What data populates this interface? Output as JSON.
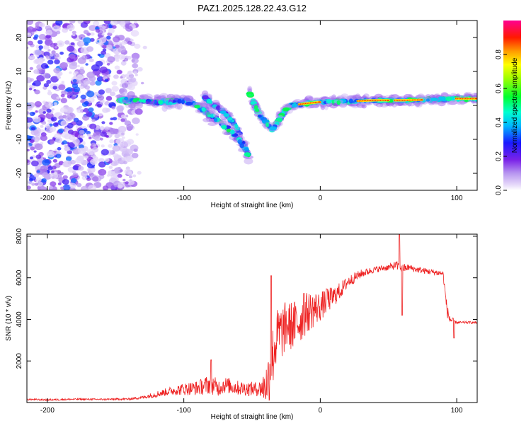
{
  "figure": {
    "title": "PAZ1.2025.128.22.43.G12"
  },
  "chart_data": [
    {
      "type": "heatmap",
      "xlabel": "Height of straight line (km)",
      "ylabel": "Frequency (Hz)",
      "xlim": [
        -215,
        115
      ],
      "ylim": [
        -25,
        25
      ],
      "xticks": [
        -200,
        -100,
        0,
        100
      ],
      "yticks": [
        -20,
        -10,
        0,
        10,
        20
      ],
      "grid": false,
      "colorbar": {
        "label": "Normalized spectral amplitude",
        "ticks": [
          0.0,
          0.2,
          0.4,
          0.6,
          0.8
        ],
        "range": [
          0,
          1
        ],
        "colormap": "rainbow (white, lavender, violet, blue, cyan, green, yellow, orange, red, magenta)"
      },
      "features": {
        "noise_region_x": [
          -215,
          -135
        ],
        "primary_ridge": {
          "x": [
            -148,
            -130,
            -115,
            -100,
            -90,
            -80,
            -70,
            -62,
            -56,
            -52
          ],
          "y": [
            1.5,
            1.5,
            1.0,
            1.5,
            0,
            -3,
            -6,
            -9,
            -12,
            -15
          ]
        },
        "secondary_branch": {
          "x": [
            -85,
            -78,
            -70,
            -62,
            -58
          ],
          "y": [
            2.5,
            0,
            -2,
            -6,
            -10
          ]
        },
        "tail_ridge": {
          "x": [
            -52,
            -48,
            -44,
            -40,
            -35,
            -30,
            -25,
            -20,
            -12,
            0,
            20,
            40,
            60,
            80,
            100,
            115
          ],
          "y": [
            4,
            0,
            -3,
            -5,
            -7,
            -4,
            -1,
            0,
            0.5,
            1,
            1.2,
            1.5,
            1.5,
            1.7,
            2,
            2
          ]
        },
        "high_amplitude_segments_x": [
          [
            -15,
            0
          ],
          [
            28,
            50
          ],
          [
            55,
            75
          ],
          [
            100,
            115
          ]
        ]
      }
    },
    {
      "type": "line",
      "xlabel": "Height of straight line (km)",
      "ylabel": "SNR (10 * v/v)",
      "xlim": [
        -215,
        115
      ],
      "ylim": [
        0,
        8100
      ],
      "xticks": [
        -200,
        -100,
        0,
        100
      ],
      "yticks": [
        2000,
        4000,
        6000,
        8000
      ],
      "grid": false,
      "series": [
        {
          "color": "#ee2222",
          "x": [
            -215,
            -200,
            -180,
            -160,
            -140,
            -130,
            -120,
            -110,
            -100,
            -90,
            -80,
            -75,
            -70,
            -60,
            -50,
            -45,
            -40,
            -38,
            -36,
            -34,
            -32,
            -30,
            -28,
            -25,
            -20,
            -15,
            -10,
            -5,
            0,
            5,
            10,
            15,
            20,
            25,
            30,
            40,
            50,
            55,
            58,
            60,
            62,
            65,
            70,
            80,
            90,
            93,
            95,
            98,
            100,
            105,
            110,
            115
          ],
          "y": [
            150,
            130,
            160,
            150,
            170,
            250,
            400,
            550,
            650,
            700,
            900,
            700,
            850,
            700,
            650,
            650,
            800,
            1200,
            1800,
            2500,
            3100,
            3300,
            3400,
            3700,
            3700,
            3900,
            4300,
            4500,
            4600,
            4900,
            5100,
            5400,
            5800,
            6000,
            6200,
            6400,
            6500,
            6600,
            6500,
            6550,
            6450,
            6500,
            6400,
            6300,
            6200,
            4400,
            4000,
            3900,
            3850,
            3850,
            3850,
            3850
          ],
          "noise_amplitude": [
            40,
            40,
            40,
            40,
            50,
            80,
            150,
            200,
            300,
            350,
            500,
            400,
            400,
            350,
            350,
            350,
            900,
            1300,
            1500,
            1500,
            1400,
            1400,
            1300,
            1200,
            1200,
            1100,
            1000,
            900,
            700,
            600,
            500,
            400,
            300,
            250,
            200,
            150,
            150,
            200,
            300,
            300,
            200,
            150,
            150,
            150,
            150,
            300,
            300,
            100,
            60,
            60,
            60,
            60
          ],
          "spikes": [
            {
              "x": -80,
              "y": 2050
            },
            {
              "x": -36,
              "y": 6100
            },
            {
              "x": -12,
              "y": 5250
            },
            {
              "x": 5,
              "y": 5450
            },
            {
              "x": 58,
              "y": 8100
            },
            {
              "x": 60,
              "y": 4200
            },
            {
              "x": 98,
              "y": 3100
            }
          ]
        }
      ]
    }
  ]
}
